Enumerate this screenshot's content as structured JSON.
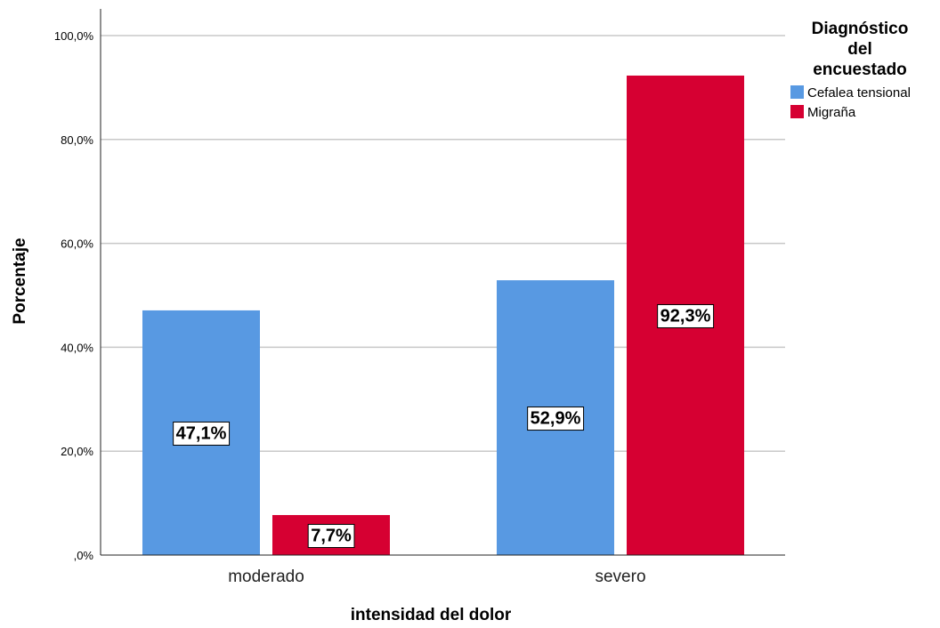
{
  "chart_data": {
    "type": "bar",
    "title": "",
    "xlabel": "intensidad del dolor",
    "ylabel": "Porcentaje",
    "categories": [
      "moderado",
      "severo"
    ],
    "series": [
      {
        "name": "Cefalea tensional",
        "color": "#5899e2",
        "values": [
          47.1,
          52.9
        ],
        "labels": [
          "47,1%",
          "52,9%"
        ]
      },
      {
        "name": "Migraña",
        "color": "#d60032",
        "values": [
          7.7,
          92.3
        ],
        "labels": [
          "7,7%",
          "92,3%"
        ]
      }
    ],
    "ylim": [
      0,
      100
    ],
    "yticks": [
      0,
      20,
      40,
      60,
      80,
      100
    ],
    "ytick_labels": [
      ",0%",
      "20,0%",
      "40,0%",
      "60,0%",
      "80,0%",
      "100,0%"
    ],
    "grid": true,
    "legend": {
      "title_lines": [
        "Diagnóstico",
        "del",
        "encuestado"
      ],
      "position": "right"
    }
  }
}
